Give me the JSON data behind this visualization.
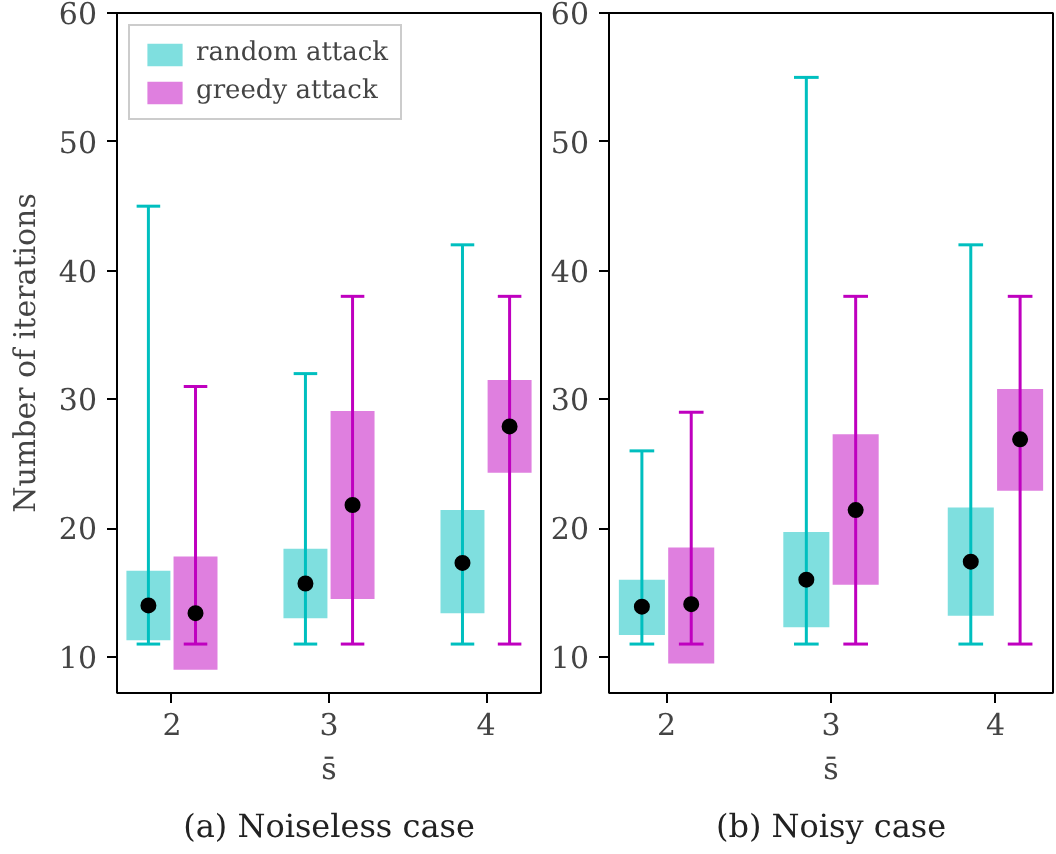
{
  "chart_data": [
    {
      "type": "bar",
      "title": "(a) Noiseless case",
      "xlabel": "s̄",
      "ylabel": "Number of iterations",
      "categories": [
        "2",
        "3",
        "4"
      ],
      "ylim": [
        7.2,
        60
      ],
      "yticks": [
        10,
        20,
        30,
        40,
        50,
        60
      ],
      "grid": false,
      "legend": "top left",
      "series": [
        {
          "name": "random attack",
          "color": "#7fdfdf",
          "base": [
            11.3,
            13.0,
            13.4
          ],
          "values": [
            5.4,
            5.4,
            8.0
          ]
        },
        {
          "name": "greedy attack",
          "color": "#df7fdf",
          "base": [
            9.0,
            14.5,
            24.3
          ],
          "values": [
            8.8,
            14.6,
            7.2
          ]
        },
        {
          "type": "scatter",
          "color": "#000000",
          "values": [
            14.0,
            15.7,
            17.3
          ],
          "errors": [
            [
              11,
              45
            ],
            [
              11,
              32
            ],
            [
              11,
              42
            ]
          ]
        },
        {
          "type": "scatter",
          "color": "#000000",
          "values": [
            13.4,
            21.8,
            27.9
          ],
          "errors": [
            [
              11,
              31
            ],
            [
              11,
              38
            ],
            [
              11,
              38
            ]
          ]
        }
      ]
    },
    {
      "type": "bar",
      "title": "(b) Noisy case",
      "xlabel": "s̄",
      "categories": [
        "2",
        "3",
        "4"
      ],
      "ylim": [
        7.2,
        60
      ],
      "yticks": [
        10,
        20,
        30,
        40,
        50,
        60
      ],
      "grid": false,
      "series": [
        {
          "color": "#7fdfdf",
          "base": [
            11.7,
            12.3,
            13.2
          ],
          "values": [
            4.3,
            7.4,
            8.4
          ]
        },
        {
          "color": "#df7fdf",
          "base": [
            9.5,
            15.6,
            22.9
          ],
          "values": [
            9.0,
            11.7,
            7.9
          ]
        },
        {
          "type": "scatter",
          "color": "#000000",
          "values": [
            13.9,
            16.0,
            17.4
          ],
          "errors": [
            [
              11,
              26
            ],
            [
              11,
              55
            ],
            [
              11,
              42
            ]
          ]
        },
        {
          "type": "scatter",
          "color": "#000000",
          "values": [
            14.1,
            21.4,
            26.9
          ],
          "errors": [
            [
              11,
              29
            ],
            [
              11,
              38
            ],
            [
              11,
              38
            ]
          ]
        }
      ]
    }
  ]
}
